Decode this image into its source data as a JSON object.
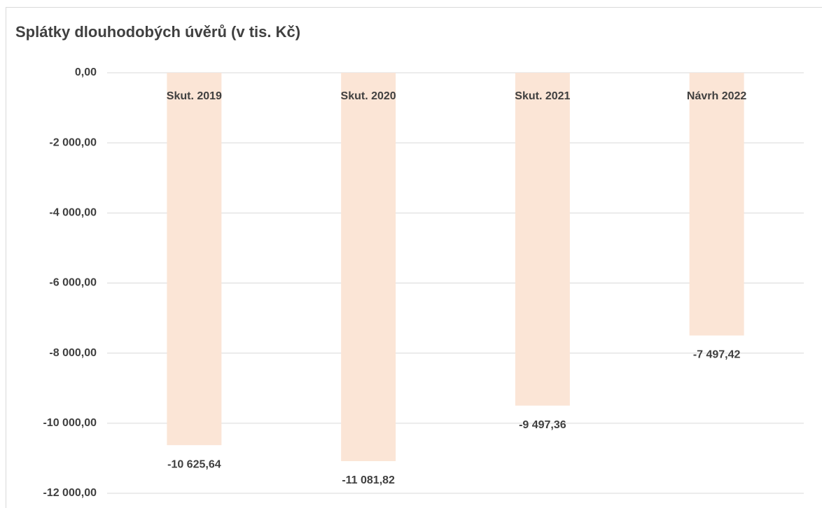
{
  "chart_data": {
    "type": "bar",
    "title": "Splátky dlouhodobých úvěrů (v tis. Kč)",
    "categories": [
      "Skut. 2019",
      "Skut. 2020",
      "Skut. 2021",
      "Návrh 2022"
    ],
    "values": [
      -10625.64,
      -11081.82,
      -9497.36,
      -7497.42
    ],
    "value_labels": [
      "-10 625,64",
      "-11 081,82",
      "-9 497,36",
      "-7 497,42"
    ],
    "color": "#fbe5d6",
    "ylim": [
      -12000,
      0
    ],
    "yticks": [
      {
        "value": 0,
        "label": "0,00"
      },
      {
        "value": -2000,
        "label": "-2 000,00"
      },
      {
        "value": -4000,
        "label": "-4 000,00"
      },
      {
        "value": -6000,
        "label": "-6 000,00"
      },
      {
        "value": -8000,
        "label": "-8 000,00"
      },
      {
        "value": -10000,
        "label": "-10 000,00"
      },
      {
        "value": -12000,
        "label": "-12 000,00"
      }
    ],
    "grid": true
  }
}
